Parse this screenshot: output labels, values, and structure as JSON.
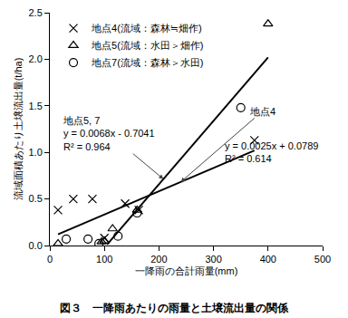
{
  "chart_data": {
    "type": "scatter",
    "title": "図３　一降雨あたりの雨量と土壌流出量の関係",
    "x_label": "一降雨の合計雨量(mm)",
    "y_label": "流域面積あたり土壌流出量(t/ha)",
    "xlim": [
      0,
      500
    ],
    "xticks": [
      0,
      100,
      200,
      300,
      400,
      500
    ],
    "ylim": [
      0,
      2.5
    ],
    "yticks": [
      {
        "value": 0,
        "label": "0.0"
      },
      0.5,
      {
        "value": 1,
        "label": "1.0"
      },
      1.5,
      {
        "value": 2,
        "label": "2.0"
      },
      2.5
    ],
    "grid": false,
    "legend": "top left",
    "series": [
      {
        "name": "地点4(流域：森林≒畑作)",
        "marker": "x",
        "color": "#000000",
        "x": [
          15,
          43,
          78,
          100,
          138,
          163,
          375
        ],
        "values": [
          0.38,
          0.5,
          0.5,
          0.08,
          0.45,
          0.38,
          1.13
        ]
      },
      {
        "name": "地点5(流域：水田＞畑作)",
        "marker": "triangle",
        "color": "#000000",
        "x": [
          15,
          95,
          100,
          115,
          160,
          400
        ],
        "values": [
          0.02,
          0.04,
          0.05,
          0.18,
          0.38,
          2.38
        ]
      },
      {
        "name": "地点7(流域：森林＞水田)",
        "marker": "circle",
        "color": "#000000",
        "x": [
          30,
          70,
          90,
          125,
          160,
          350
        ],
        "values": [
          0.07,
          0.07,
          0.02,
          0.1,
          0.35,
          1.48
        ]
      },
      {
        "type": "line",
        "color": "#000000",
        "x": [
          105,
          400
        ],
        "values": [
          0.01,
          2.02
        ]
      },
      {
        "type": "line",
        "color": "#000000",
        "x": [
          15,
          375
        ],
        "values": [
          0.12,
          1.02
        ]
      }
    ],
    "annotations": [
      [
        "地点5, 7",
        "y = 0.0068x - 0.7041",
        "R² = 0.964"
      ],
      [
        "地点4"
      ],
      [
        "y = 0.0025x + 0.0789",
        "R² = 0.614"
      ]
    ]
  }
}
